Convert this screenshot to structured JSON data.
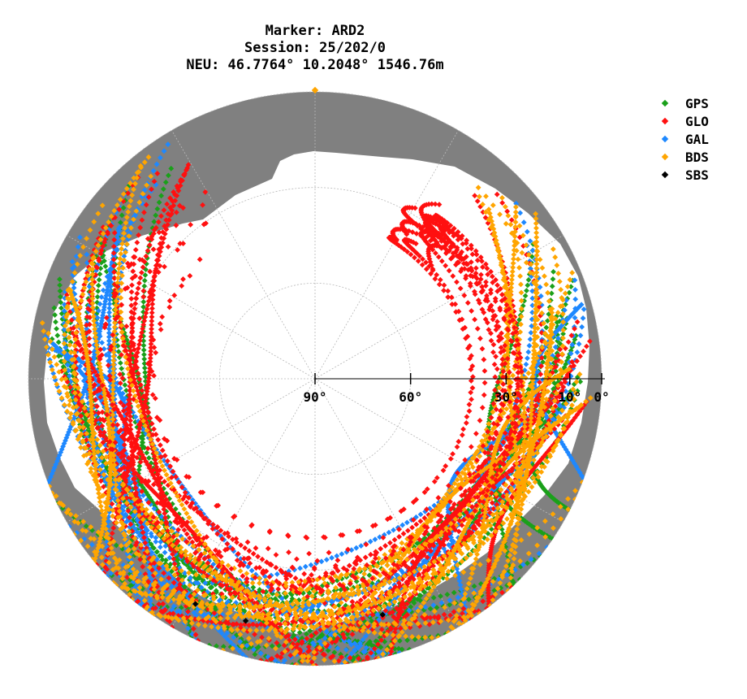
{
  "chart_data": {
    "type": "scatter",
    "title_lines": [
      "Marker: ARD2",
      "Session: 25/202/0",
      "NEU: 46.7764° 10.2048° 1546.76m"
    ],
    "subtitle": "",
    "xlabel": "",
    "ylabel": "",
    "elevation_range": [
      0,
      90
    ],
    "elevation_tick_labels": [
      "90°",
      "60°",
      "30°",
      "10°",
      "0°"
    ],
    "elevation_ticks": [
      90,
      60,
      30,
      10,
      0
    ],
    "grid": true,
    "legend_position": "top-right",
    "series": [
      {
        "name": "GPS",
        "color": "#1aa01a"
      },
      {
        "name": "GLO",
        "color": "#ff1010"
      },
      {
        "name": "GAL",
        "color": "#1e88ff"
      },
      {
        "name": "BDS",
        "color": "#ffa500"
      },
      {
        "name": "SBS",
        "color": "#000000"
      }
    ],
    "sbs_points": [
      {
        "azimuth": 208,
        "elevation": 10
      },
      {
        "azimuth": 196,
        "elevation": 11
      },
      {
        "azimuth": 164,
        "elevation": 13
      }
    ]
  }
}
